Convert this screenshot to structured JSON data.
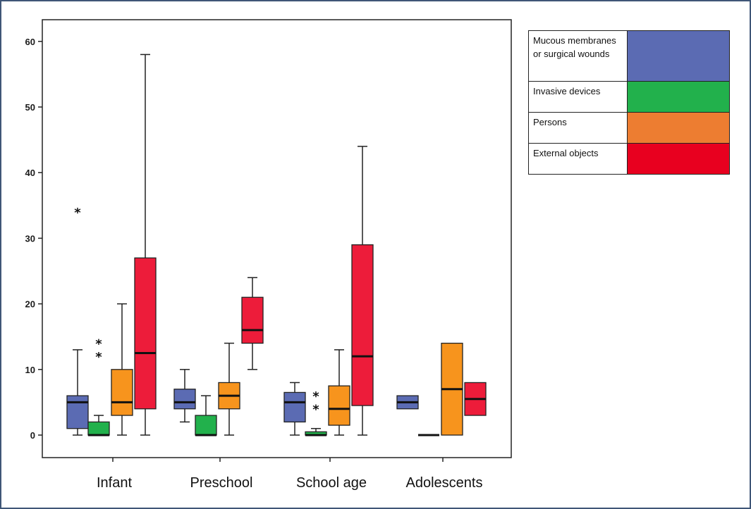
{
  "chart_data": {
    "type": "boxplot",
    "categories": [
      "Infant",
      "Preschool",
      "School age",
      "Adolescents"
    ],
    "ylim": [
      0,
      60
    ],
    "yticks": [
      0,
      10,
      20,
      30,
      40,
      50,
      60
    ],
    "series": [
      {
        "name": "Mucous membranes or surgical wounds",
        "color": "#5b6bb3",
        "boxes": [
          {
            "min": 0,
            "q1": 1,
            "median": 5,
            "q3": 6,
            "max": 13,
            "outliers": [
              34
            ]
          },
          {
            "min": 2,
            "q1": 4,
            "median": 5,
            "q3": 7,
            "max": 10,
            "outliers": []
          },
          {
            "min": 0,
            "q1": 2,
            "median": 5,
            "q3": 6.5,
            "max": 8,
            "outliers": []
          },
          {
            "min": 4,
            "q1": 4,
            "median": 5,
            "q3": 6,
            "max": 6,
            "outliers": []
          }
        ]
      },
      {
        "name": "Invasive devices",
        "color": "#22b14c",
        "boxes": [
          {
            "min": 0,
            "q1": 0,
            "median": 0,
            "q3": 2,
            "max": 3,
            "outliers": [
              12,
              14
            ]
          },
          {
            "min": 0,
            "q1": 0,
            "median": 0,
            "q3": 3,
            "max": 6,
            "outliers": []
          },
          {
            "min": 0,
            "q1": 0,
            "median": 0,
            "q3": 0.5,
            "max": 1,
            "outliers": [
              4,
              6
            ]
          },
          {
            "min": 0,
            "q1": 0,
            "median": 0,
            "q3": 0,
            "max": 0,
            "outliers": []
          }
        ]
      },
      {
        "name": "Persons",
        "color": "#f7941d",
        "boxes": [
          {
            "min": 0,
            "q1": 3,
            "median": 5,
            "q3": 10,
            "max": 20,
            "outliers": []
          },
          {
            "min": 0,
            "q1": 4,
            "median": 6,
            "q3": 8,
            "max": 14,
            "outliers": []
          },
          {
            "min": 0,
            "q1": 1.5,
            "median": 4,
            "q3": 7.5,
            "max": 13,
            "outliers": []
          },
          {
            "min": 0,
            "q1": 0,
            "median": 7,
            "q3": 14,
            "max": 14,
            "outliers": []
          }
        ]
      },
      {
        "name": "External objects",
        "color": "#ed1c3a",
        "boxes": [
          {
            "min": 0,
            "q1": 4,
            "median": 12.5,
            "q3": 27,
            "max": 58,
            "outliers": []
          },
          {
            "min": 10,
            "q1": 14,
            "median": 16,
            "q3": 21,
            "max": 24,
            "outliers": []
          },
          {
            "min": 0,
            "q1": 4.5,
            "median": 12,
            "q3": 29,
            "max": 44,
            "outliers": []
          },
          {
            "min": 3,
            "q1": 3,
            "median": 5.5,
            "q3": 8,
            "max": 8,
            "outliers": []
          }
        ]
      }
    ]
  },
  "legend": [
    {
      "label": "Mucous membranes or surgical wounds",
      "color": "#5b6bb3"
    },
    {
      "label": "Invasive devices",
      "color": "#22b14c"
    },
    {
      "label": "Persons",
      "color": "#ed7d31"
    },
    {
      "label": "External objects",
      "color": "#e8001f"
    }
  ]
}
